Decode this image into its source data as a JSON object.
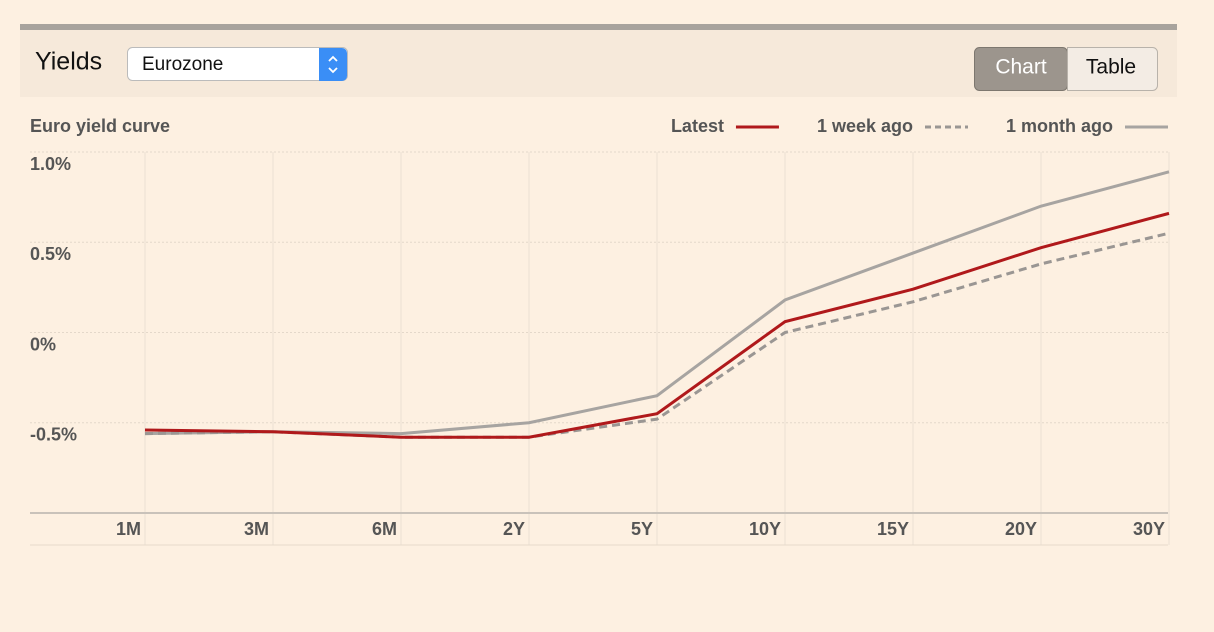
{
  "header": {
    "title": "Yields",
    "region": "Eurozone",
    "views": [
      "Chart",
      "Table"
    ]
  },
  "chart_data": {
    "type": "line",
    "title": "Euro yield curve",
    "categories": [
      "1M",
      "3M",
      "6M",
      "2Y",
      "5Y",
      "10Y",
      "15Y",
      "20Y",
      "30Y"
    ],
    "series": [
      {
        "name": "Latest",
        "color": "#b0191b",
        "dash": false,
        "values": [
          -0.54,
          -0.55,
          -0.58,
          -0.58,
          -0.45,
          0.06,
          0.24,
          0.47,
          0.66
        ]
      },
      {
        "name": "1 week ago",
        "color": "#9a9693",
        "dash": true,
        "values": [
          -0.56,
          -0.55,
          -0.58,
          -0.58,
          -0.48,
          0.0,
          0.17,
          0.38,
          0.55
        ]
      },
      {
        "name": "1 month ago",
        "color": "#a7a4a1",
        "dash": false,
        "values": [
          -0.56,
          -0.55,
          -0.56,
          -0.5,
          -0.35,
          0.18,
          0.44,
          0.7,
          0.89
        ]
      }
    ],
    "ylim": [
      -1,
      1
    ],
    "yticks": [
      {
        "value": 1,
        "label": "1.0%"
      },
      {
        "value": 0.5,
        "label": "0.5%"
      },
      {
        "value": 0,
        "label": "0%"
      },
      {
        "value": -0.5,
        "label": "-0.5%"
      }
    ],
    "grid": true,
    "legend": "top-right"
  }
}
